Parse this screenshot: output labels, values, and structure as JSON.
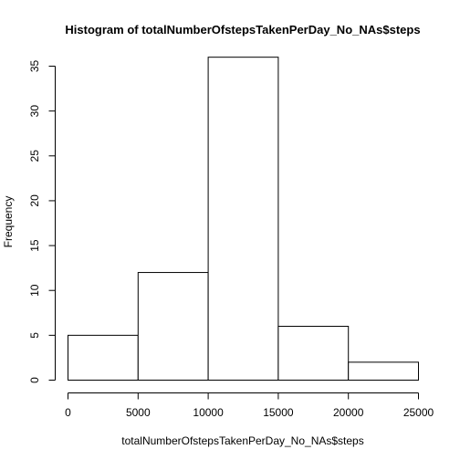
{
  "chart_data": {
    "type": "bar",
    "title": "Histogram of totalNumberOfstepsTakenPerDay_No_NAs$steps",
    "xlabel": "totalNumberOfstepsTakenPerDay_No_NAs$steps",
    "ylabel": "Frequency",
    "bins": [
      {
        "start": 0,
        "end": 5000,
        "value": 5
      },
      {
        "start": 5000,
        "end": 10000,
        "value": 12
      },
      {
        "start": 10000,
        "end": 15000,
        "value": 36
      },
      {
        "start": 15000,
        "end": 20000,
        "value": 6
      },
      {
        "start": 20000,
        "end": 25000,
        "value": 2
      }
    ],
    "xlim": [
      0,
      25000
    ],
    "ylim": [
      0,
      35
    ],
    "x_ticks": [
      "0",
      "5000",
      "10000",
      "15000",
      "20000",
      "25000"
    ],
    "y_ticks": [
      "0",
      "5",
      "10",
      "15",
      "20",
      "25",
      "30",
      "35"
    ],
    "grid": false,
    "legend": "none",
    "bar_fill": "#ffffff",
    "bar_stroke": "#000000"
  }
}
